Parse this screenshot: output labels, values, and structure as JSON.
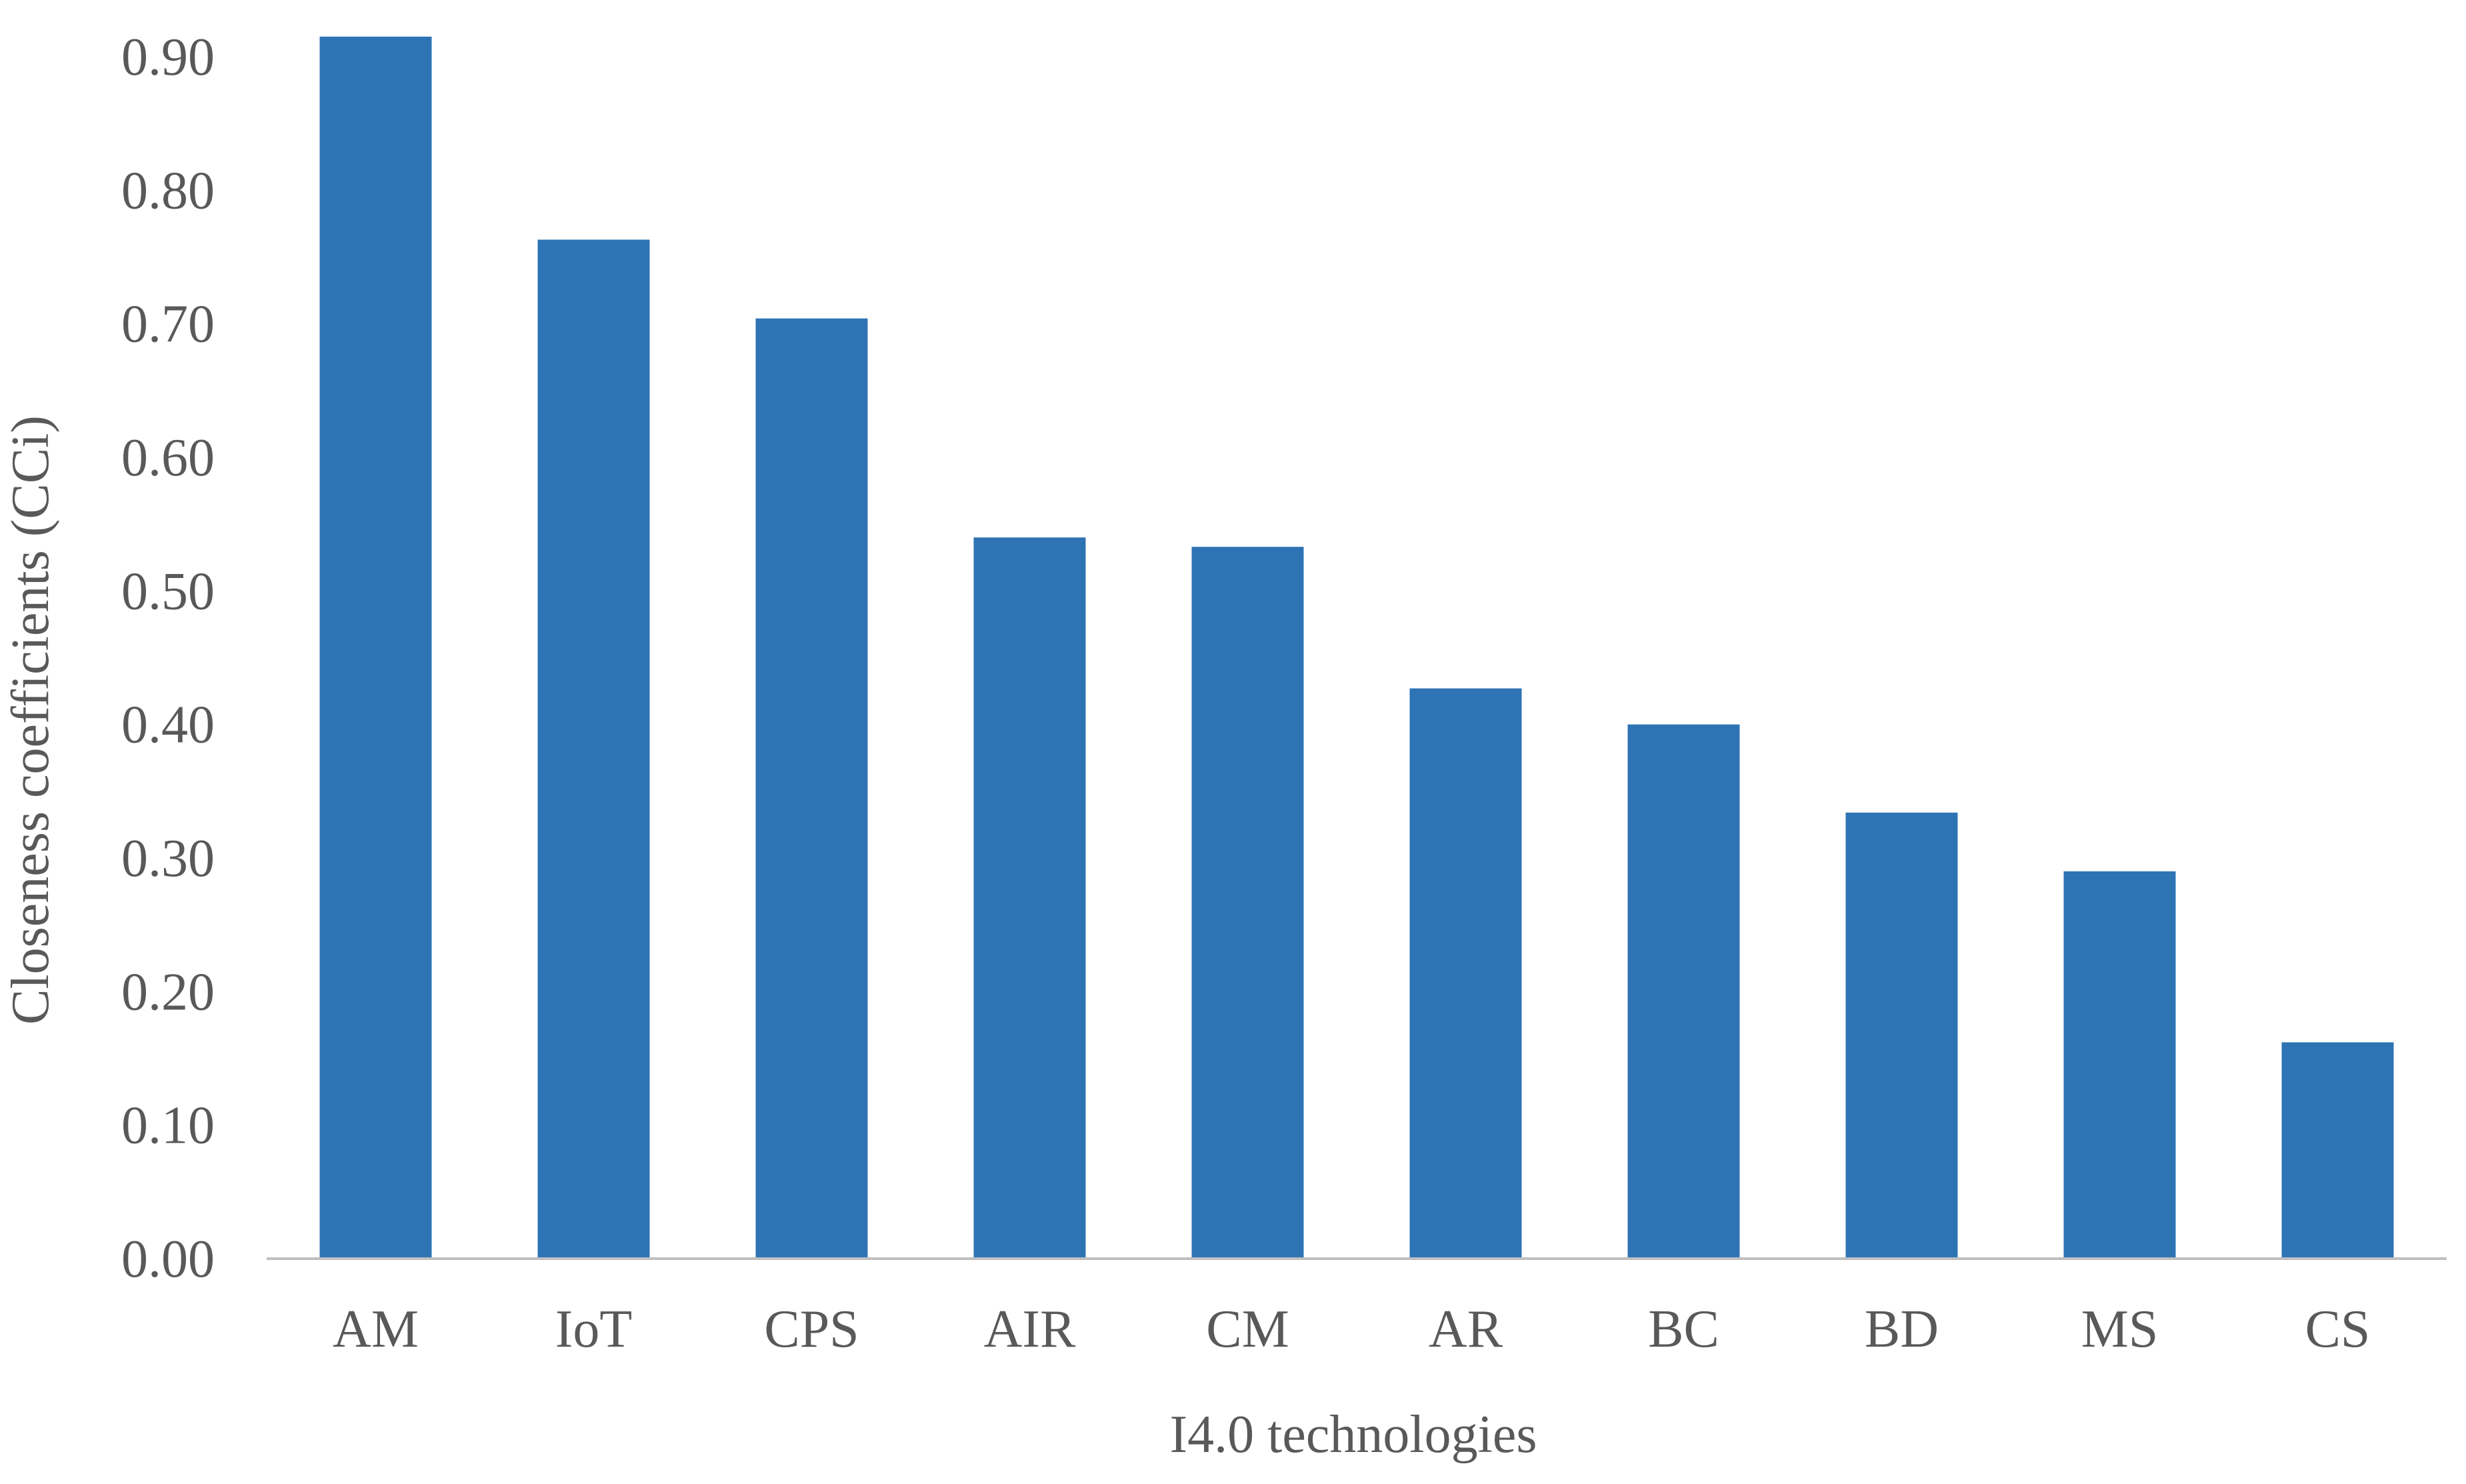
{
  "chart_data": {
    "type": "bar",
    "categories": [
      "AM",
      "IoT",
      "CPS",
      "AIR",
      "CM",
      "AR",
      "BC",
      "BD",
      "MS",
      "CS"
    ],
    "values": [
      0.915,
      0.763,
      0.704,
      0.54,
      0.533,
      0.427,
      0.4,
      0.334,
      0.29,
      0.162
    ],
    "xlabel": "I4.0 technologies",
    "ylabel": "Closeness coefficients (CCi)",
    "ylim": [
      0,
      0.9
    ],
    "yticks": [
      "0.00",
      "0.10",
      "0.20",
      "0.30",
      "0.40",
      "0.50",
      "0.60",
      "0.70",
      "0.80",
      "0.90"
    ],
    "grid": false,
    "legend": "none",
    "colors": {
      "bar": "#2e74b5",
      "axis_line": "#bfbfbf",
      "text": "#595959"
    }
  }
}
